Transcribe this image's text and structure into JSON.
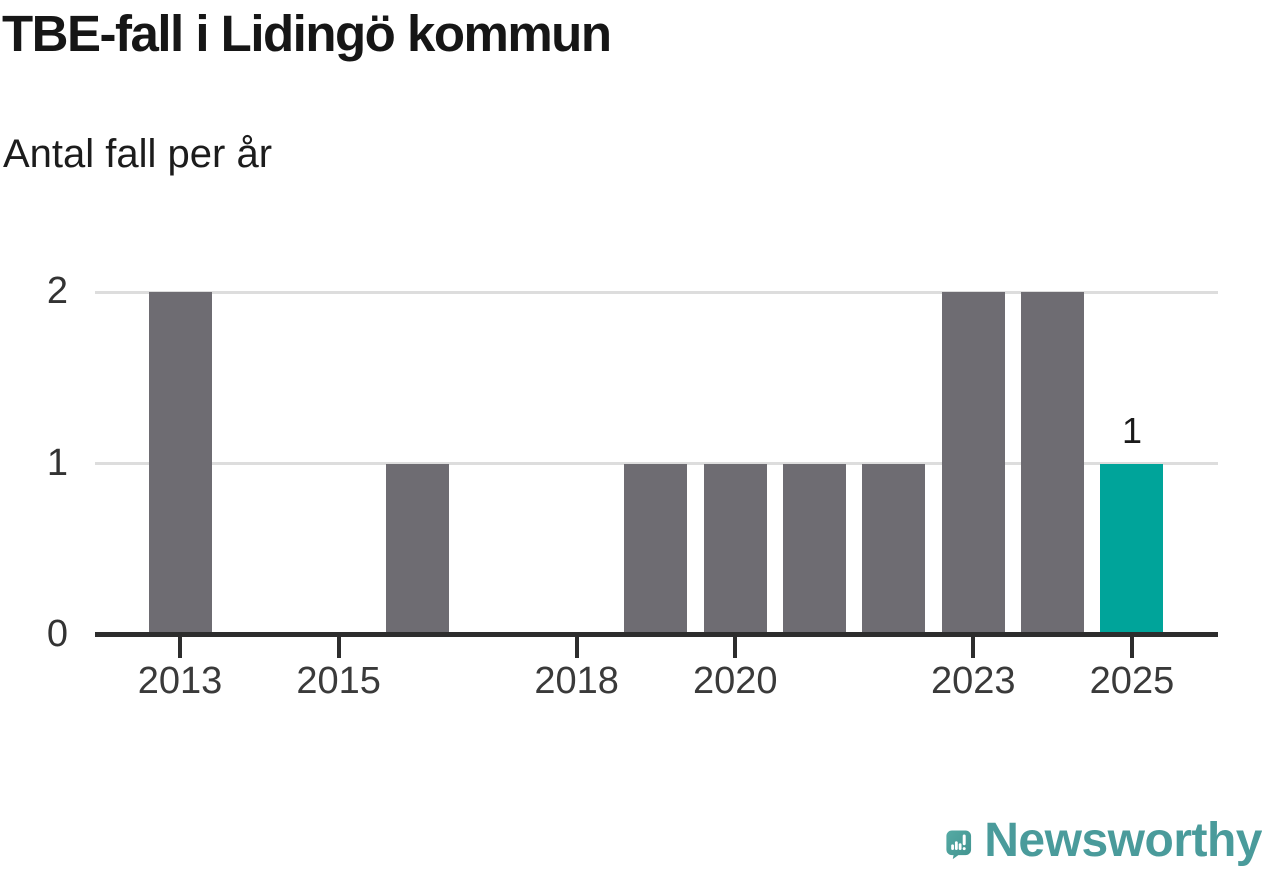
{
  "header": {
    "title": "TBE-fall i Lidingö kommun",
    "subtitle": "Antal fall per år"
  },
  "chart_data": {
    "type": "bar",
    "title": "TBE-fall i Lidingö kommun",
    "subtitle_ylabel": "Antal fall per år",
    "x": [
      2013,
      2014,
      2015,
      2016,
      2017,
      2018,
      2019,
      2020,
      2021,
      2022,
      2023,
      2024,
      2025
    ],
    "values": [
      2,
      0,
      0,
      1,
      0,
      0,
      1,
      1,
      1,
      1,
      2,
      2,
      1
    ],
    "highlight_year": 2025,
    "highlight_value_label": "1",
    "yticks": [
      "0",
      "1",
      "2"
    ],
    "ytick_values": [
      0,
      1,
      2
    ],
    "ylim": [
      0,
      2
    ],
    "xtick_years": [
      2013,
      2015,
      2018,
      2020,
      2023,
      2025
    ],
    "xtick_labels": [
      "2013",
      "2015",
      "2018",
      "2020",
      "2023",
      "2025"
    ],
    "grid": "horizontal-only",
    "legend": "none",
    "colors": {
      "bar": "#6e6c72",
      "highlight": "#00a49a",
      "gridline": "#dddddd",
      "axis": "#2d2d2d",
      "tick_text": "#3a3a3a"
    }
  },
  "branding": {
    "logo_text": "Newsworthy",
    "logo_text_color": "#4a9b9b",
    "logo_icon": "newsworthy-speech-bubble-barchart-icon",
    "logo_icon_color": "#4ba29d"
  }
}
